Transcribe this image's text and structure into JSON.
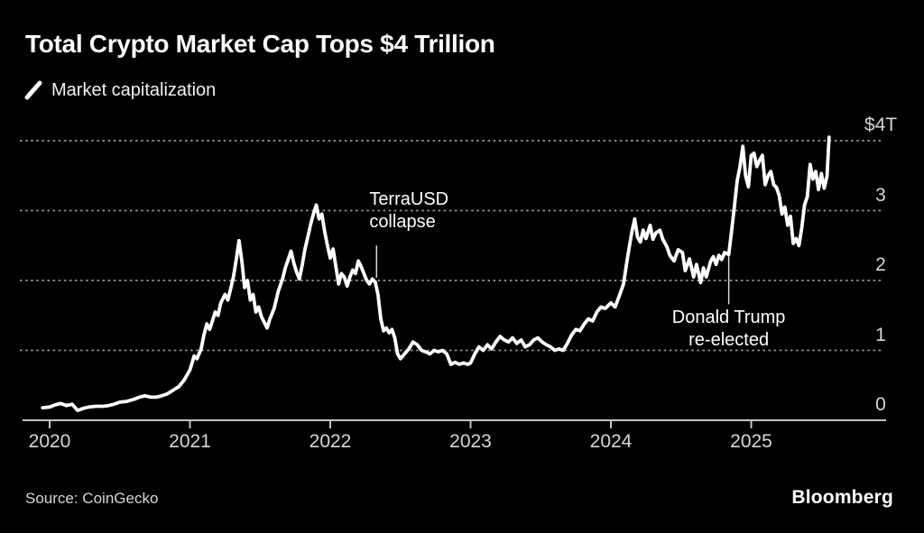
{
  "header": {
    "title": "Total Crypto Market Cap Tops $4 Trillion",
    "legend": {
      "label": "Market capitalization",
      "swatch_color": "#ffffff"
    }
  },
  "footer": {
    "source": "Source: CoinGecko",
    "brand": "Bloomberg"
  },
  "colors": {
    "background": "#000000",
    "title_text": "#ffffff",
    "axis_text": "#d6d6d6",
    "grid": "#979797",
    "axis_line": "#c2c2c2",
    "series_line": "#ffffff",
    "annotation_text": "#ffffff",
    "callout_line": "#d9d9d9"
  },
  "chart_data": {
    "type": "line",
    "title": "Total Crypto Market Cap Tops $4 Trillion",
    "xlabel": "",
    "ylabel": "Market capitalization (USD trillions)",
    "grid": "horizontal-dotted",
    "legend_position": "top-left",
    "x_ticks": [
      "2020",
      "2021",
      "2022",
      "2023",
      "2024",
      "2025"
    ],
    "y_ticks": [
      {
        "value": 4,
        "label": "$4T"
      },
      {
        "value": 3,
        "label": "3"
      },
      {
        "value": 2,
        "label": "2"
      },
      {
        "value": 1,
        "label": "1"
      },
      {
        "value": 0,
        "label": "0"
      }
    ],
    "x_range_years": [
      2019.81,
      2025.96
    ],
    "y_range": [
      0,
      4.3
    ],
    "series": [
      {
        "name": "Market capitalization",
        "unit": "USD trillions",
        "points": [
          [
            2019.95,
            0.18
          ],
          [
            2020.0,
            0.19
          ],
          [
            2020.04,
            0.22
          ],
          [
            2020.08,
            0.24
          ],
          [
            2020.12,
            0.21
          ],
          [
            2020.16,
            0.23
          ],
          [
            2020.2,
            0.14
          ],
          [
            2020.24,
            0.17
          ],
          [
            2020.28,
            0.19
          ],
          [
            2020.33,
            0.2
          ],
          [
            2020.38,
            0.2
          ],
          [
            2020.42,
            0.21
          ],
          [
            2020.46,
            0.23
          ],
          [
            2020.5,
            0.26
          ],
          [
            2020.55,
            0.27
          ],
          [
            2020.6,
            0.3
          ],
          [
            2020.64,
            0.33
          ],
          [
            2020.68,
            0.35
          ],
          [
            2020.72,
            0.33
          ],
          [
            2020.76,
            0.33
          ],
          [
            2020.8,
            0.35
          ],
          [
            2020.84,
            0.38
          ],
          [
            2020.88,
            0.43
          ],
          [
            2020.92,
            0.48
          ],
          [
            2020.96,
            0.58
          ],
          [
            2021.0,
            0.72
          ],
          [
            2021.03,
            0.92
          ],
          [
            2021.05,
            0.88
          ],
          [
            2021.08,
            1.02
          ],
          [
            2021.1,
            1.22
          ],
          [
            2021.12,
            1.38
          ],
          [
            2021.14,
            1.3
          ],
          [
            2021.16,
            1.42
          ],
          [
            2021.18,
            1.55
          ],
          [
            2021.2,
            1.5
          ],
          [
            2021.22,
            1.68
          ],
          [
            2021.25,
            1.8
          ],
          [
            2021.27,
            1.72
          ],
          [
            2021.29,
            1.88
          ],
          [
            2021.31,
            2.05
          ],
          [
            2021.33,
            2.3
          ],
          [
            2021.35,
            2.57
          ],
          [
            2021.37,
            2.28
          ],
          [
            2021.39,
            1.9
          ],
          [
            2021.41,
            2.0
          ],
          [
            2021.43,
            1.72
          ],
          [
            2021.45,
            1.8
          ],
          [
            2021.47,
            1.55
          ],
          [
            2021.49,
            1.62
          ],
          [
            2021.51,
            1.48
          ],
          [
            2021.53,
            1.4
          ],
          [
            2021.55,
            1.32
          ],
          [
            2021.57,
            1.45
          ],
          [
            2021.6,
            1.6
          ],
          [
            2021.63,
            1.85
          ],
          [
            2021.66,
            2.02
          ],
          [
            2021.68,
            2.18
          ],
          [
            2021.7,
            2.3
          ],
          [
            2021.72,
            2.42
          ],
          [
            2021.74,
            2.25
          ],
          [
            2021.76,
            2.12
          ],
          [
            2021.78,
            2.02
          ],
          [
            2021.8,
            2.22
          ],
          [
            2021.82,
            2.45
          ],
          [
            2021.84,
            2.62
          ],
          [
            2021.86,
            2.8
          ],
          [
            2021.88,
            2.95
          ],
          [
            2021.9,
            3.08
          ],
          [
            2021.92,
            2.88
          ],
          [
            2021.94,
            2.95
          ],
          [
            2021.96,
            2.7
          ],
          [
            2021.98,
            2.5
          ],
          [
            2022.0,
            2.32
          ],
          [
            2022.02,
            2.45
          ],
          [
            2022.04,
            2.2
          ],
          [
            2022.06,
            1.95
          ],
          [
            2022.08,
            2.1
          ],
          [
            2022.1,
            2.05
          ],
          [
            2022.12,
            1.92
          ],
          [
            2022.14,
            2.05
          ],
          [
            2022.16,
            2.15
          ],
          [
            2022.18,
            2.1
          ],
          [
            2022.2,
            2.28
          ],
          [
            2022.22,
            2.2
          ],
          [
            2022.24,
            2.1
          ],
          [
            2022.26,
            2.0
          ],
          [
            2022.28,
            1.95
          ],
          [
            2022.3,
            2.02
          ],
          [
            2022.32,
            1.98
          ],
          [
            2022.34,
            1.8
          ],
          [
            2022.36,
            1.45
          ],
          [
            2022.38,
            1.28
          ],
          [
            2022.4,
            1.32
          ],
          [
            2022.42,
            1.25
          ],
          [
            2022.44,
            1.3
          ],
          [
            2022.46,
            1.18
          ],
          [
            2022.48,
            0.95
          ],
          [
            2022.5,
            0.88
          ],
          [
            2022.53,
            0.95
          ],
          [
            2022.56,
            1.02
          ],
          [
            2022.59,
            1.12
          ],
          [
            2022.62,
            1.08
          ],
          [
            2022.65,
            1.0
          ],
          [
            2022.68,
            0.98
          ],
          [
            2022.71,
            0.95
          ],
          [
            2022.74,
            1.0
          ],
          [
            2022.77,
            0.98
          ],
          [
            2022.8,
            1.0
          ],
          [
            2022.83,
            0.95
          ],
          [
            2022.86,
            0.8
          ],
          [
            2022.89,
            0.83
          ],
          [
            2022.92,
            0.8
          ],
          [
            2022.95,
            0.82
          ],
          [
            2022.98,
            0.8
          ],
          [
            2023.0,
            0.82
          ],
          [
            2023.03,
            0.95
          ],
          [
            2023.06,
            1.05
          ],
          [
            2023.09,
            1.0
          ],
          [
            2023.12,
            1.08
          ],
          [
            2023.15,
            1.02
          ],
          [
            2023.18,
            1.12
          ],
          [
            2023.21,
            1.2
          ],
          [
            2023.24,
            1.15
          ],
          [
            2023.27,
            1.12
          ],
          [
            2023.3,
            1.18
          ],
          [
            2023.33,
            1.1
          ],
          [
            2023.36,
            1.15
          ],
          [
            2023.39,
            1.05
          ],
          [
            2023.42,
            1.08
          ],
          [
            2023.45,
            1.15
          ],
          [
            2023.48,
            1.18
          ],
          [
            2023.51,
            1.12
          ],
          [
            2023.54,
            1.08
          ],
          [
            2023.57,
            1.05
          ],
          [
            2023.6,
            1.0
          ],
          [
            2023.63,
            1.02
          ],
          [
            2023.66,
            1.0
          ],
          [
            2023.69,
            1.1
          ],
          [
            2023.72,
            1.22
          ],
          [
            2023.75,
            1.3
          ],
          [
            2023.78,
            1.28
          ],
          [
            2023.81,
            1.38
          ],
          [
            2023.84,
            1.45
          ],
          [
            2023.87,
            1.42
          ],
          [
            2023.9,
            1.55
          ],
          [
            2023.93,
            1.62
          ],
          [
            2023.96,
            1.6
          ],
          [
            2024.0,
            1.68
          ],
          [
            2024.03,
            1.62
          ],
          [
            2024.06,
            1.78
          ],
          [
            2024.09,
            1.95
          ],
          [
            2024.12,
            2.35
          ],
          [
            2024.15,
            2.7
          ],
          [
            2024.17,
            2.88
          ],
          [
            2024.19,
            2.62
          ],
          [
            2024.21,
            2.55
          ],
          [
            2024.23,
            2.72
          ],
          [
            2024.25,
            2.6
          ],
          [
            2024.28,
            2.79
          ],
          [
            2024.3,
            2.59
          ],
          [
            2024.32,
            2.68
          ],
          [
            2024.35,
            2.72
          ],
          [
            2024.37,
            2.59
          ],
          [
            2024.4,
            2.48
          ],
          [
            2024.42,
            2.36
          ],
          [
            2024.45,
            2.28
          ],
          [
            2024.48,
            2.44
          ],
          [
            2024.51,
            2.4
          ],
          [
            2024.53,
            2.14
          ],
          [
            2024.56,
            2.31
          ],
          [
            2024.59,
            2.05
          ],
          [
            2024.61,
            2.23
          ],
          [
            2024.64,
            1.97
          ],
          [
            2024.66,
            2.18
          ],
          [
            2024.68,
            2.05
          ],
          [
            2024.71,
            2.27
          ],
          [
            2024.73,
            2.34
          ],
          [
            2024.75,
            2.23
          ],
          [
            2024.77,
            2.36
          ],
          [
            2024.79,
            2.3
          ],
          [
            2024.81,
            2.4
          ],
          [
            2024.84,
            2.37
          ],
          [
            2024.86,
            2.7
          ],
          [
            2024.88,
            3.05
          ],
          [
            2024.9,
            3.43
          ],
          [
            2024.92,
            3.63
          ],
          [
            2024.94,
            3.92
          ],
          [
            2024.96,
            3.5
          ],
          [
            2024.98,
            3.34
          ],
          [
            2025.0,
            3.79
          ],
          [
            2025.02,
            3.82
          ],
          [
            2025.04,
            3.63
          ],
          [
            2025.06,
            3.72
          ],
          [
            2025.08,
            3.79
          ],
          [
            2025.1,
            3.37
          ],
          [
            2025.12,
            3.5
          ],
          [
            2025.14,
            3.56
          ],
          [
            2025.16,
            3.37
          ],
          [
            2025.18,
            3.33
          ],
          [
            2025.2,
            3.21
          ],
          [
            2025.22,
            2.95
          ],
          [
            2025.24,
            3.05
          ],
          [
            2025.26,
            2.79
          ],
          [
            2025.28,
            2.92
          ],
          [
            2025.3,
            2.53
          ],
          [
            2025.32,
            2.6
          ],
          [
            2025.34,
            2.5
          ],
          [
            2025.36,
            2.75
          ],
          [
            2025.38,
            3.08
          ],
          [
            2025.4,
            3.2
          ],
          [
            2025.42,
            3.66
          ],
          [
            2025.44,
            3.45
          ],
          [
            2025.46,
            3.56
          ],
          [
            2025.48,
            3.3
          ],
          [
            2025.5,
            3.53
          ],
          [
            2025.52,
            3.32
          ],
          [
            2025.54,
            3.49
          ],
          [
            2025.555,
            4.05
          ]
        ]
      }
    ],
    "annotations": [
      {
        "text_lines": [
          "TerraUSD",
          "collapse"
        ],
        "x_year": 2022.33,
        "callout_value_top": 2.5,
        "callout_value_bottom": 2.04,
        "text_position": "above",
        "align": "left"
      },
      {
        "text_lines": [
          "Donald Trump",
          "re-elected"
        ],
        "x_year": 2024.84,
        "callout_value_top": 2.35,
        "callout_value_bottom": 1.66,
        "text_position": "below",
        "align": "center"
      }
    ]
  }
}
